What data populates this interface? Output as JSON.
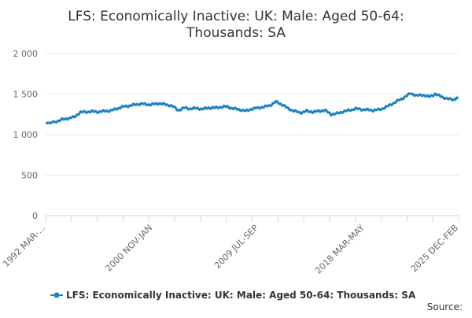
{
  "colors": {
    "series": "#1f83c1",
    "grid": "#e6e6e6",
    "axis": "#ccd6eb",
    "text": "#333333",
    "tick_text": "#666666"
  },
  "chart_data": {
    "type": "line",
    "title_lines": [
      "LFS: Economically Inactive: UK: Male: Aged 50-64:",
      "Thousands: SA"
    ],
    "ylim": [
      0,
      2000
    ],
    "y_ticks": [
      0,
      500,
      1000,
      1500,
      2000
    ],
    "y_tick_labels": [
      "0",
      "500",
      "1 000",
      "1 500",
      "2 000"
    ],
    "x_tick_labels": [
      "1992 MAR-...",
      "2000 NOV-JAN",
      "2009 JUL-SEP",
      "2018 MAR-MAY",
      "2025 DEC-FEB"
    ],
    "x_tick_positions": [
      1992.17,
      2000.92,
      2009.58,
      2018.25,
      2025.92
    ],
    "xlim": [
      1992.17,
      2025.92
    ],
    "grid": "horizontal",
    "legend_position": "bottom-center",
    "legend_icon": "line-with-dot-icon",
    "series": [
      {
        "name": "LFS: Economically Inactive: UK: Male: Aged 50-64: Thousands: SA",
        "x": [
          1992.2,
          1993.0,
          1993.5,
          1994.0,
          1994.5,
          1995.0,
          1995.5,
          1996.0,
          1996.5,
          1997.0,
          1997.5,
          1998.0,
          1998.5,
          1999.0,
          1999.5,
          2000.0,
          2000.5,
          2001.0,
          2001.5,
          2002.0,
          2002.5,
          2003.0,
          2003.5,
          2004.0,
          2004.5,
          2005.0,
          2005.5,
          2006.0,
          2006.5,
          2007.0,
          2007.5,
          2008.0,
          2008.5,
          2009.0,
          2009.5,
          2010.0,
          2010.5,
          2011.0,
          2011.5,
          2012.0,
          2012.5,
          2013.0,
          2013.5,
          2014.0,
          2014.5,
          2015.0,
          2015.5,
          2016.0,
          2016.5,
          2017.0,
          2017.5,
          2018.0,
          2018.5,
          2019.0,
          2019.5,
          2020.0,
          2020.5,
          2021.0,
          2021.5,
          2022.0,
          2022.5,
          2023.0,
          2023.5,
          2024.0,
          2024.5,
          2025.0,
          2025.5,
          2025.9
        ],
        "values": [
          1130,
          1160,
          1185,
          1200,
          1215,
          1275,
          1280,
          1285,
          1280,
          1290,
          1295,
          1320,
          1345,
          1355,
          1370,
          1380,
          1370,
          1375,
          1385,
          1370,
          1355,
          1300,
          1330,
          1320,
          1325,
          1315,
          1330,
          1330,
          1340,
          1345,
          1320,
          1310,
          1290,
          1315,
          1330,
          1340,
          1360,
          1405,
          1370,
          1320,
          1290,
          1270,
          1290,
          1280,
          1290,
          1300,
          1250,
          1260,
          1285,
          1300,
          1320,
          1310,
          1305,
          1300,
          1310,
          1340,
          1380,
          1420,
          1460,
          1510,
          1480,
          1490,
          1465,
          1500,
          1470,
          1440,
          1435,
          1450
        ]
      }
    ]
  },
  "source_label": "Source:"
}
